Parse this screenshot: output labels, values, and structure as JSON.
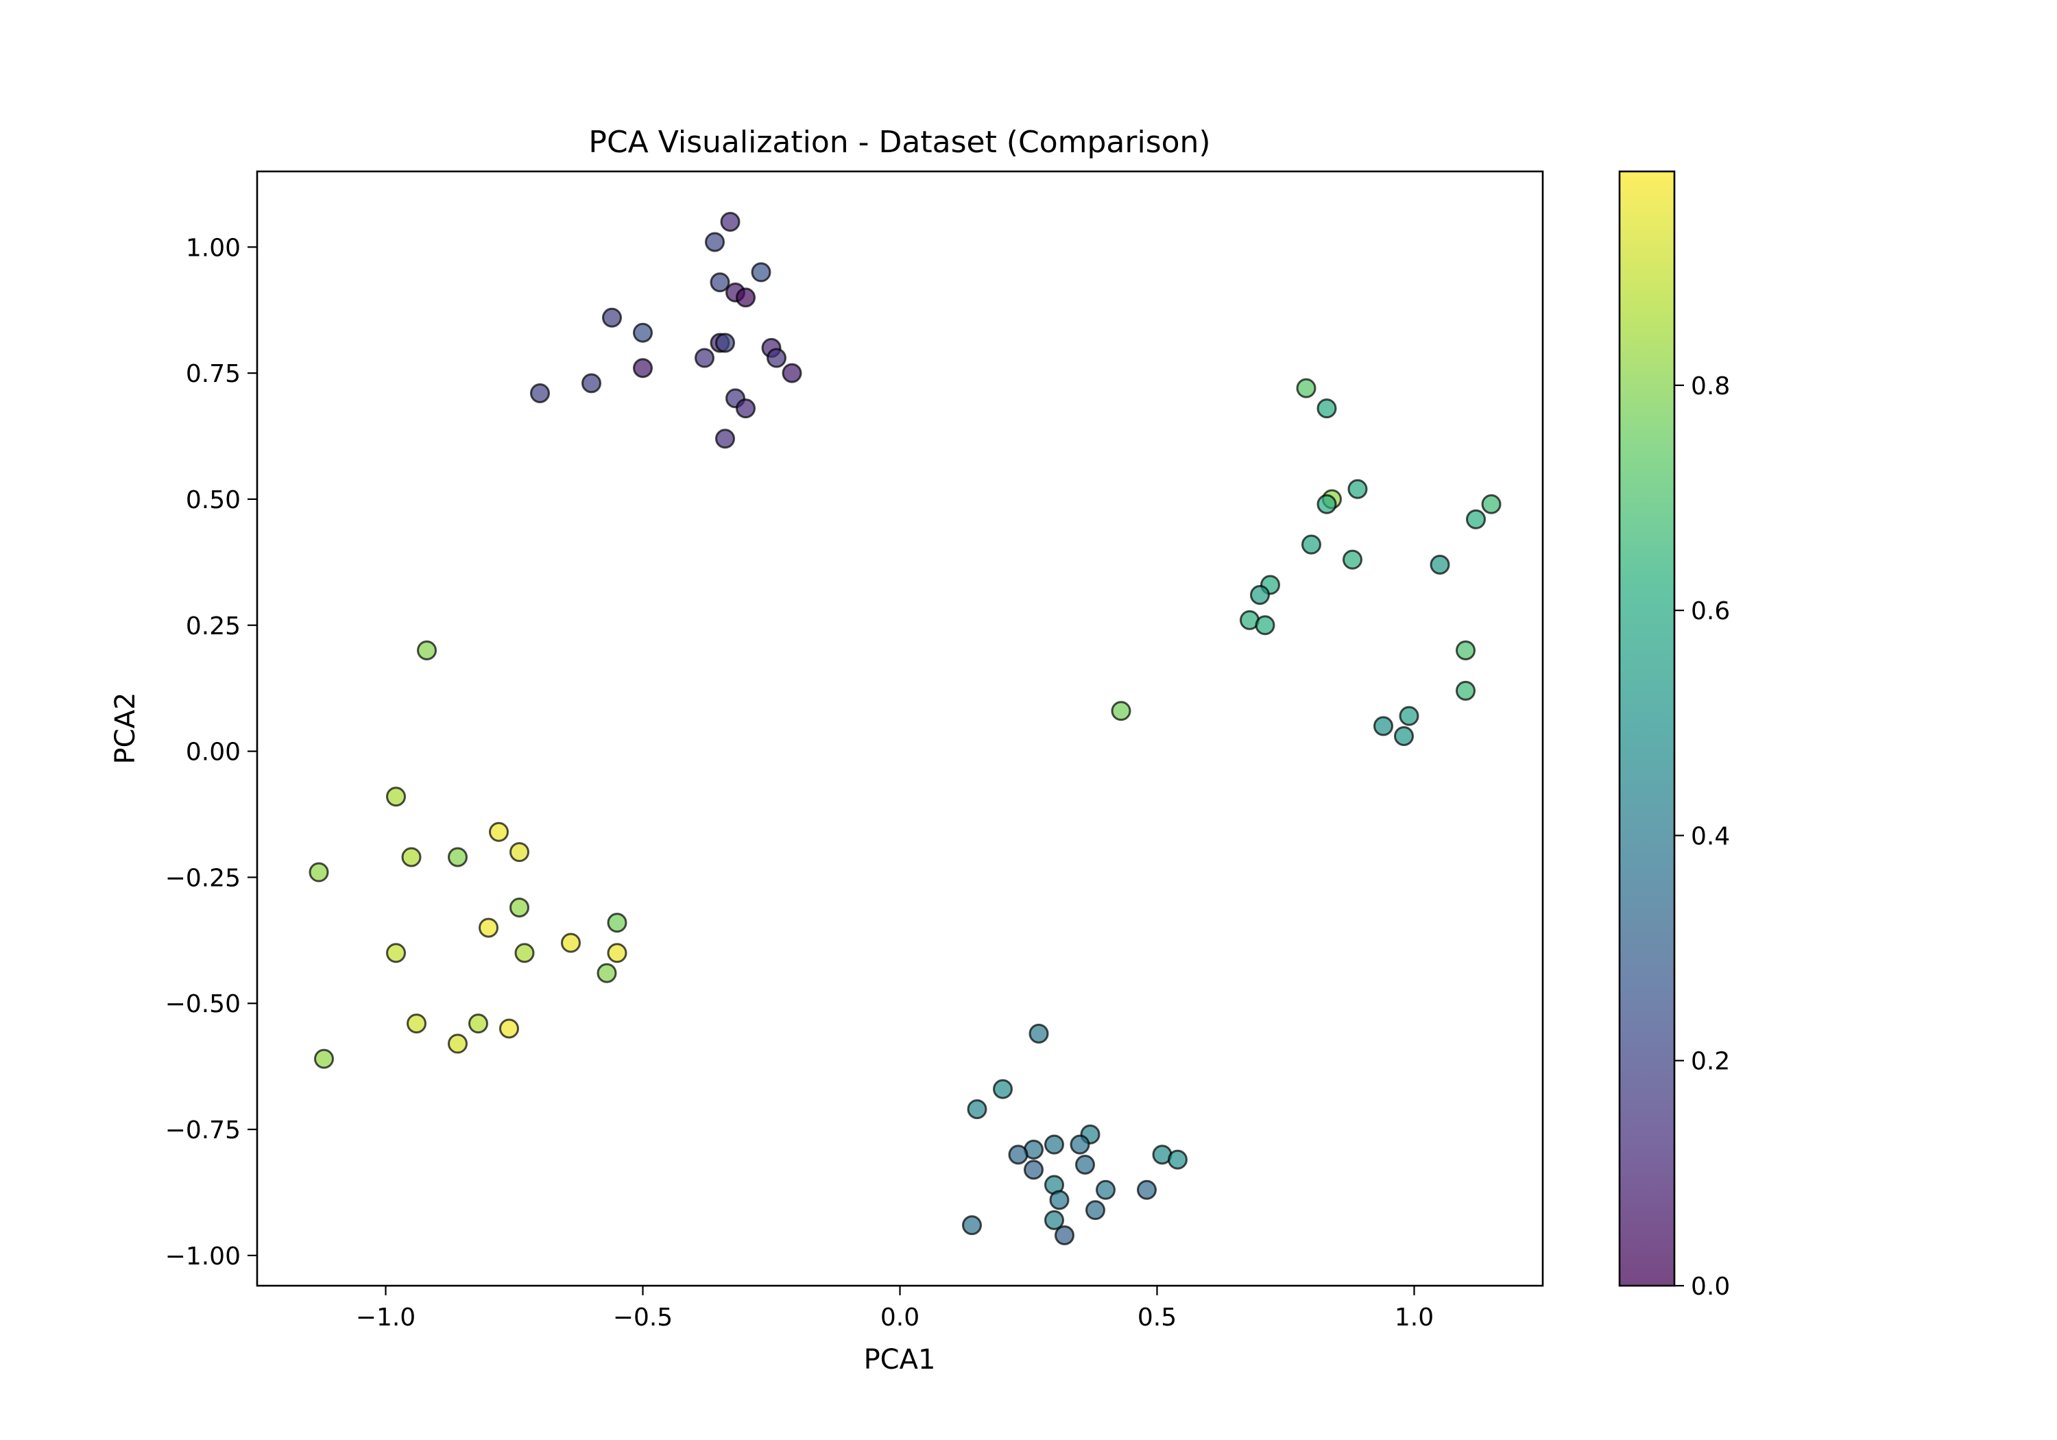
{
  "chart_data": {
    "type": "scatter",
    "title": "PCA Visualization - Dataset (Comparison)",
    "xlabel": "PCA1",
    "ylabel": "PCA2",
    "xlim": [
      -1.25,
      1.25
    ],
    "ylim": [
      -1.06,
      1.15
    ],
    "x_ticks": [
      -1.0,
      -0.5,
      0.0,
      0.5,
      1.0
    ],
    "x_tick_labels": [
      "−1.0",
      "−0.5",
      "0.0",
      "0.5",
      "1.0"
    ],
    "y_ticks": [
      -1.0,
      -0.75,
      -0.5,
      -0.25,
      0.0,
      0.25,
      0.5,
      0.75,
      1.0
    ],
    "y_tick_labels": [
      "−1.00",
      "−0.75",
      "−0.50",
      "−0.25",
      "0.00",
      "0.25",
      "0.50",
      "0.75",
      "1.00"
    ],
    "grid": false,
    "colormap": "viridis",
    "colorbar": {
      "range": [
        0.0,
        0.99
      ],
      "ticks": [
        0.0,
        0.2,
        0.4,
        0.6,
        0.8
      ],
      "tick_labels": [
        "0.0",
        "0.2",
        "0.4",
        "0.6",
        "0.8"
      ]
    },
    "points": [
      {
        "x": -0.33,
        "y": 1.05,
        "c": 0.12
      },
      {
        "x": -0.36,
        "y": 1.01,
        "c": 0.22
      },
      {
        "x": -0.27,
        "y": 0.95,
        "c": 0.26
      },
      {
        "x": -0.35,
        "y": 0.93,
        "c": 0.21
      },
      {
        "x": -0.32,
        "y": 0.91,
        "c": 0.07
      },
      {
        "x": -0.3,
        "y": 0.9,
        "c": 0.03
      },
      {
        "x": -0.56,
        "y": 0.86,
        "c": 0.18
      },
      {
        "x": -0.5,
        "y": 0.83,
        "c": 0.25
      },
      {
        "x": -0.35,
        "y": 0.81,
        "c": 0.1
      },
      {
        "x": -0.34,
        "y": 0.81,
        "c": 0.21
      },
      {
        "x": -0.25,
        "y": 0.8,
        "c": 0.1
      },
      {
        "x": -0.38,
        "y": 0.78,
        "c": 0.15
      },
      {
        "x": -0.24,
        "y": 0.78,
        "c": 0.14
      },
      {
        "x": -0.5,
        "y": 0.76,
        "c": 0.07
      },
      {
        "x": -0.21,
        "y": 0.75,
        "c": 0.08
      },
      {
        "x": -0.6,
        "y": 0.73,
        "c": 0.18
      },
      {
        "x": -0.7,
        "y": 0.71,
        "c": 0.19
      },
      {
        "x": -0.32,
        "y": 0.7,
        "c": 0.16
      },
      {
        "x": -0.3,
        "y": 0.68,
        "c": 0.11
      },
      {
        "x": -0.34,
        "y": 0.62,
        "c": 0.13
      },
      {
        "x": -0.92,
        "y": 0.2,
        "c": 0.8
      },
      {
        "x": 0.79,
        "y": 0.72,
        "c": 0.72
      },
      {
        "x": 0.83,
        "y": 0.68,
        "c": 0.6
      },
      {
        "x": 0.89,
        "y": 0.52,
        "c": 0.6
      },
      {
        "x": 1.15,
        "y": 0.49,
        "c": 0.67
      },
      {
        "x": 0.84,
        "y": 0.5,
        "c": 0.82
      },
      {
        "x": 0.83,
        "y": 0.49,
        "c": 0.61
      },
      {
        "x": 1.12,
        "y": 0.46,
        "c": 0.62
      },
      {
        "x": 0.8,
        "y": 0.41,
        "c": 0.59
      },
      {
        "x": 0.88,
        "y": 0.38,
        "c": 0.63
      },
      {
        "x": 1.05,
        "y": 0.37,
        "c": 0.53
      },
      {
        "x": 0.72,
        "y": 0.33,
        "c": 0.61
      },
      {
        "x": 0.7,
        "y": 0.31,
        "c": 0.56
      },
      {
        "x": 0.68,
        "y": 0.26,
        "c": 0.63
      },
      {
        "x": 0.71,
        "y": 0.25,
        "c": 0.62
      },
      {
        "x": 1.1,
        "y": 0.2,
        "c": 0.7
      },
      {
        "x": 1.1,
        "y": 0.12,
        "c": 0.66
      },
      {
        "x": 0.43,
        "y": 0.08,
        "c": 0.77
      },
      {
        "x": 0.99,
        "y": 0.07,
        "c": 0.56
      },
      {
        "x": 0.94,
        "y": 0.05,
        "c": 0.5
      },
      {
        "x": 0.98,
        "y": 0.03,
        "c": 0.52
      },
      {
        "x": -0.98,
        "y": -0.09,
        "c": 0.86
      },
      {
        "x": -0.78,
        "y": -0.16,
        "c": 0.97
      },
      {
        "x": -0.74,
        "y": -0.2,
        "c": 0.95
      },
      {
        "x": -0.95,
        "y": -0.21,
        "c": 0.87
      },
      {
        "x": -0.86,
        "y": -0.21,
        "c": 0.8
      },
      {
        "x": -1.13,
        "y": -0.24,
        "c": 0.82
      },
      {
        "x": -0.74,
        "y": -0.31,
        "c": 0.82
      },
      {
        "x": -0.55,
        "y": -0.34,
        "c": 0.77
      },
      {
        "x": -0.8,
        "y": -0.35,
        "c": 0.97
      },
      {
        "x": -0.98,
        "y": -0.4,
        "c": 0.9
      },
      {
        "x": -0.73,
        "y": -0.4,
        "c": 0.86
      },
      {
        "x": -0.64,
        "y": -0.38,
        "c": 0.96
      },
      {
        "x": -0.55,
        "y": -0.4,
        "c": 0.96
      },
      {
        "x": -0.57,
        "y": -0.44,
        "c": 0.8
      },
      {
        "x": -0.94,
        "y": -0.54,
        "c": 0.92
      },
      {
        "x": -0.82,
        "y": -0.54,
        "c": 0.88
      },
      {
        "x": -0.76,
        "y": -0.55,
        "c": 0.97
      },
      {
        "x": -0.86,
        "y": -0.58,
        "c": 0.93
      },
      {
        "x": -1.12,
        "y": -0.61,
        "c": 0.82
      },
      {
        "x": 0.27,
        "y": -0.56,
        "c": 0.4
      },
      {
        "x": 0.2,
        "y": -0.67,
        "c": 0.48
      },
      {
        "x": 0.15,
        "y": -0.71,
        "c": 0.45
      },
      {
        "x": 0.37,
        "y": -0.76,
        "c": 0.43
      },
      {
        "x": 0.35,
        "y": -0.78,
        "c": 0.38
      },
      {
        "x": 0.3,
        "y": -0.78,
        "c": 0.39
      },
      {
        "x": 0.26,
        "y": -0.79,
        "c": 0.37
      },
      {
        "x": 0.23,
        "y": -0.8,
        "c": 0.34
      },
      {
        "x": 0.51,
        "y": -0.8,
        "c": 0.47
      },
      {
        "x": 0.54,
        "y": -0.81,
        "c": 0.49
      },
      {
        "x": 0.36,
        "y": -0.82,
        "c": 0.36
      },
      {
        "x": 0.26,
        "y": -0.83,
        "c": 0.32
      },
      {
        "x": 0.3,
        "y": -0.86,
        "c": 0.45
      },
      {
        "x": 0.4,
        "y": -0.87,
        "c": 0.4
      },
      {
        "x": 0.48,
        "y": -0.87,
        "c": 0.34
      },
      {
        "x": 0.31,
        "y": -0.89,
        "c": 0.39
      },
      {
        "x": 0.38,
        "y": -0.91,
        "c": 0.35
      },
      {
        "x": 0.3,
        "y": -0.93,
        "c": 0.44
      },
      {
        "x": 0.14,
        "y": -0.94,
        "c": 0.37
      },
      {
        "x": 0.32,
        "y": -0.96,
        "c": 0.3
      }
    ]
  }
}
